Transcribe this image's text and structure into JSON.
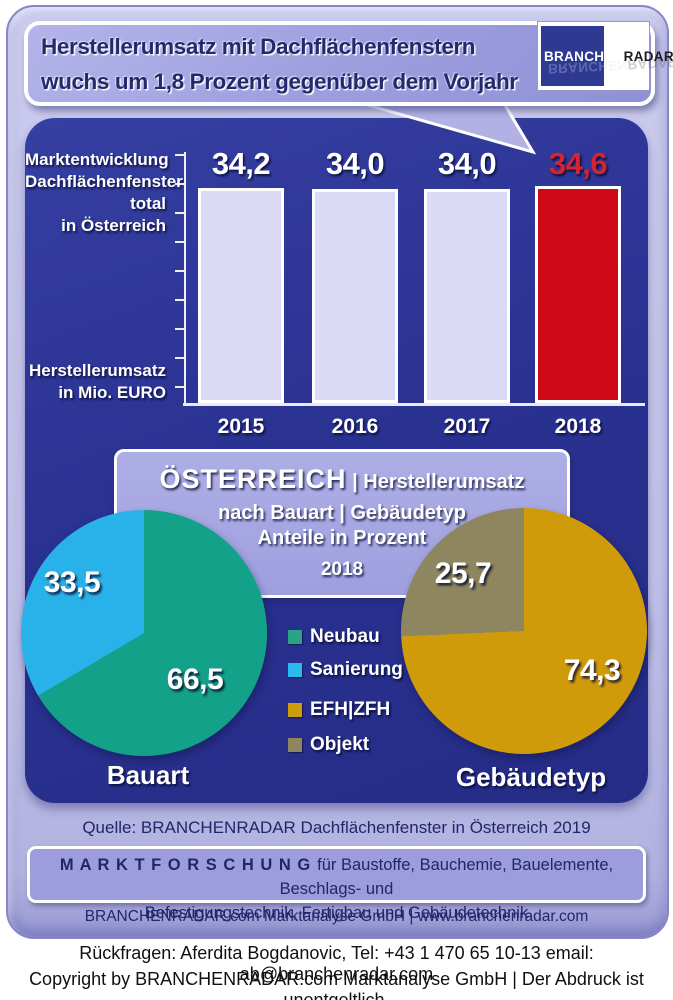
{
  "header": {
    "title_line1": "Herstellerumsatz mit  Dachflächenfenstern",
    "title_line2": "wuchs um 1,8 Prozent gegenüber dem Vorjahr",
    "logo": {
      "part1": "BRANCHEN",
      "part2": "RADAR"
    }
  },
  "bar_section": {
    "label_top": [
      "Marktentwicklung",
      "Dachflächenfenster",
      "total",
      "in Österreich"
    ],
    "label_bottom": [
      "Herstellerumsatz",
      "in Mio. EURO"
    ]
  },
  "pie_section": {
    "title_main": "ÖSTERREICH",
    "title_rest": "| Herstellerumsatz",
    "line2": "nach Bauart | Gebäudetyp",
    "line3": "Anteile in Prozent",
    "year": "2018",
    "left_caption": "Bauart",
    "right_caption": "Gebäudetyp",
    "legend": [
      {
        "label": "Neubau",
        "color": "#2aa287"
      },
      {
        "label": "Sanierung",
        "color": "#2cb9ee"
      },
      {
        "label": "EFH|ZFH",
        "color": "#cf9c0b"
      },
      {
        "label": "Objekt",
        "color": "#8f865f"
      }
    ]
  },
  "source_line": {
    "prefix": "Quelle:",
    "text": " BRANCHENRADAR Dachflächenfenster in Österreich 2019"
  },
  "research_box": {
    "bold": "M A R K T F O R S C H U N G",
    "line1_rest": "für Baustoffe, Bauchemie, Bauelemente, Beschlags- und",
    "line2": "Befestigungstechnik, Fertigbau und Gebäudetechnik"
  },
  "strip": {
    "text": "BRANCHENRADAR.com Marktanalyse GmbH | www.branchenradar.com"
  },
  "footer": {
    "line1": "Rückfragen: Aferdita Bogdanovic, Tel: +43 1 470 65 10-13 email: ab@branchenradar.com",
    "line2": "Copyright by BRANCHENRADAR.com  Marktanalyse GmbH | Der Abdruck ist unentgeltlich."
  },
  "colors": {
    "frame_lavender": "#c3c3e9",
    "bubble_purple": "#9c9cde",
    "panel_navy": "#2a3292",
    "bar_fill": "#dadaf6",
    "highlight_red": "#ce0a18",
    "highlight_red_text": "#d32531",
    "teal": "#14a189",
    "light_blue": "#29b2e9",
    "gold": "#d09b0a",
    "olive": "#8e865e",
    "dark_text": "#20266a"
  },
  "chart_data": [
    {
      "type": "bar",
      "title": "Marktentwicklung Dachflächenfenster total in Österreich",
      "ylabel": "Herstellerumsatz in Mio. EURO",
      "categories": [
        "2015",
        "2016",
        "2017",
        "2018"
      ],
      "values": [
        34.2,
        34.0,
        34.0,
        34.6
      ],
      "display": [
        "34,2",
        "34,0",
        "34,0",
        "34,6"
      ],
      "highlight_index": 3,
      "bar_color": "#dadaf6",
      "highlight_color": "#ce0a18",
      "ylim": [
        0,
        35
      ],
      "grid": false
    },
    {
      "type": "pie",
      "title": "Bauart",
      "slices": [
        {
          "label": "Neubau",
          "value": 66.5,
          "display": "66,5",
          "color": "#14a189"
        },
        {
          "label": "Sanierung",
          "value": 33.5,
          "display": "33,5",
          "color": "#29b2e9"
        }
      ]
    },
    {
      "type": "pie",
      "title": "Gebäudetyp",
      "slices": [
        {
          "label": "EFH|ZFH",
          "value": 74.3,
          "display": "74,3",
          "color": "#d09b0a"
        },
        {
          "label": "Objekt",
          "value": 25.7,
          "display": "25,7",
          "color": "#8e865e"
        }
      ]
    }
  ]
}
